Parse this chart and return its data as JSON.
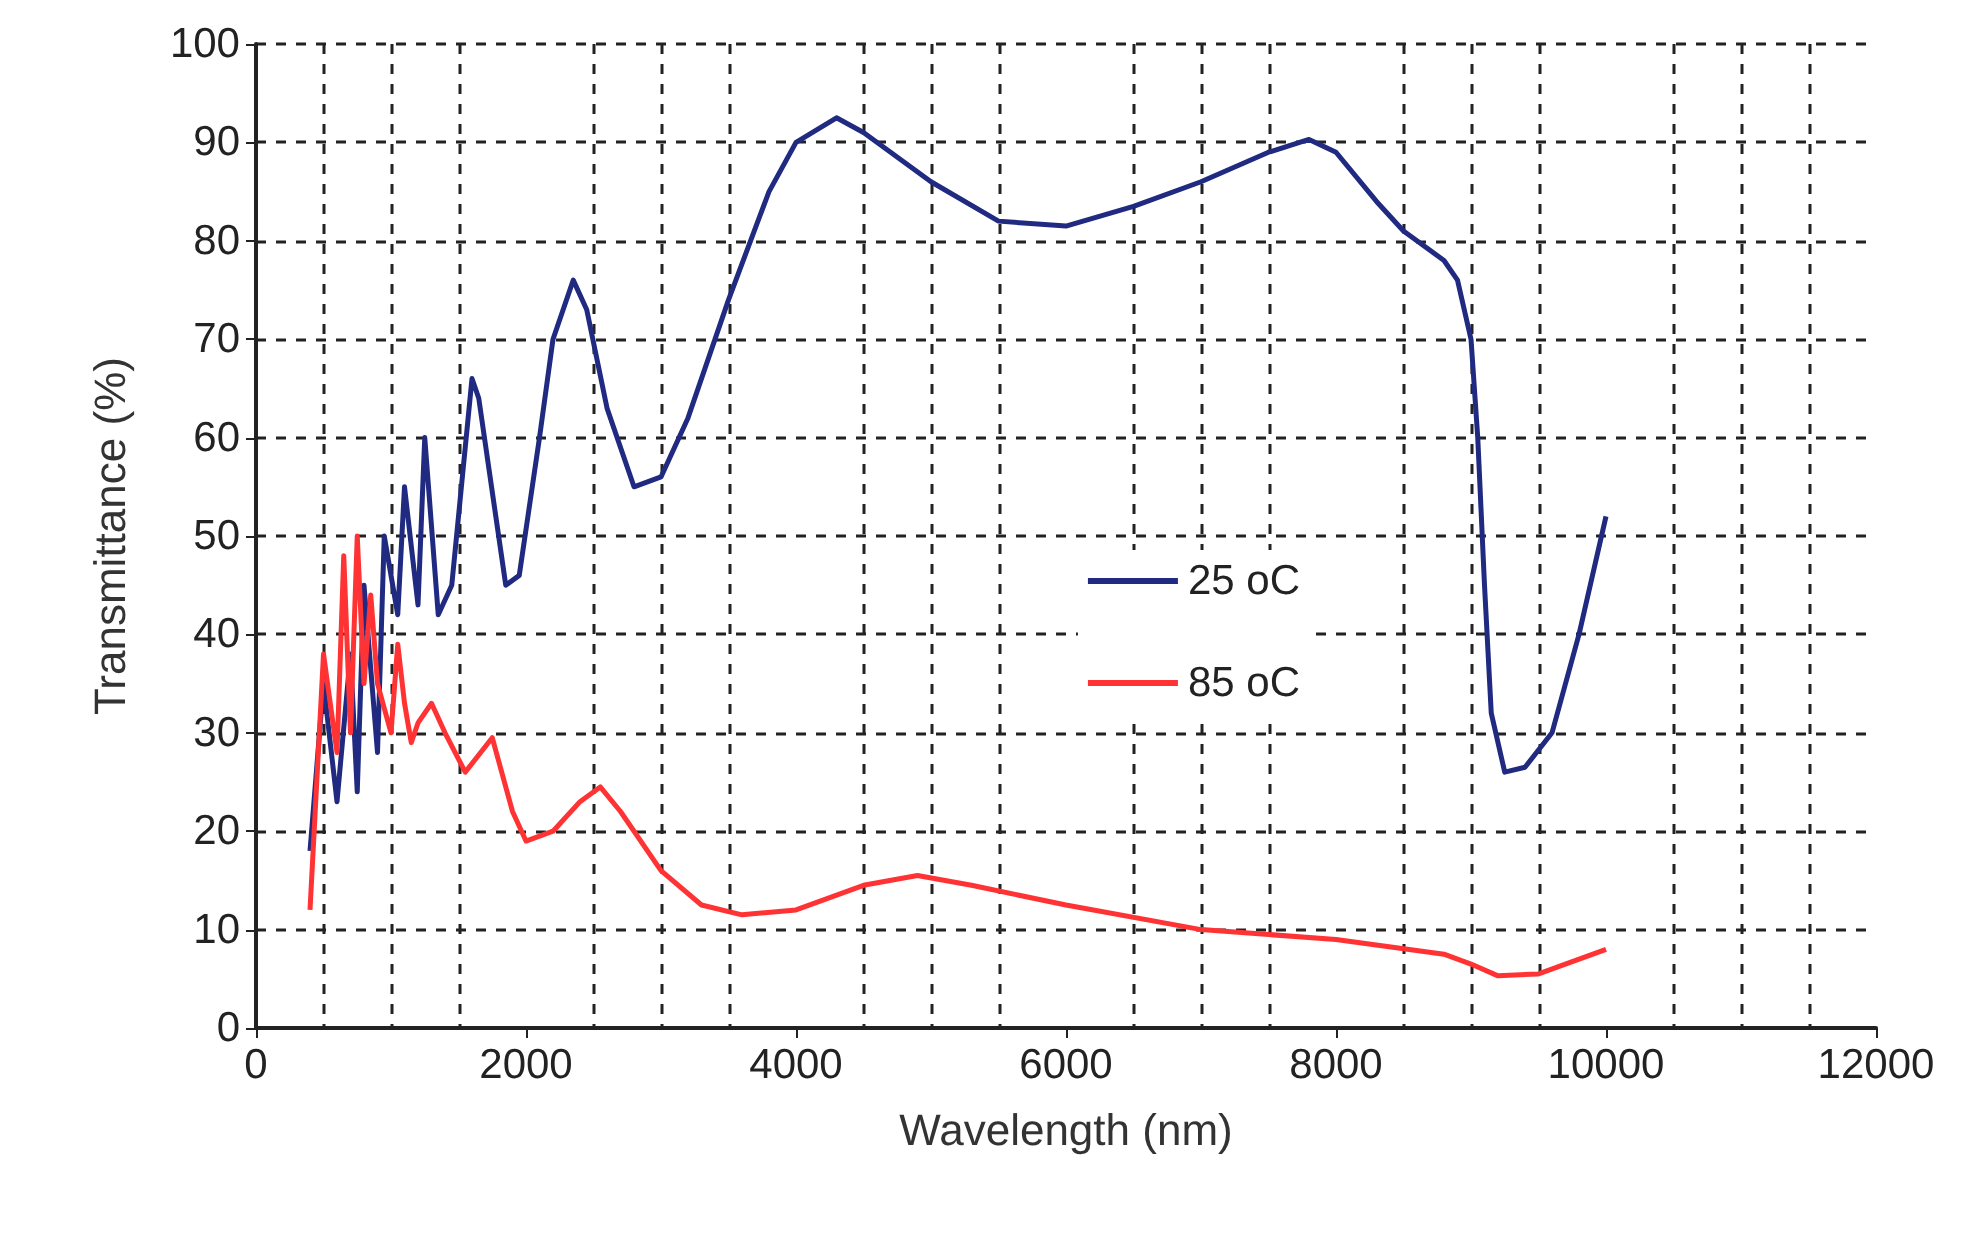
{
  "chart_data": {
    "type": "line",
    "xlabel": "Wavelength (nm)",
    "ylabel": "Transmittance (%)",
    "xlim": [
      0,
      12000
    ],
    "xticks": [
      0,
      2000,
      4000,
      6000,
      8000,
      10000,
      12000
    ],
    "ylim": [
      0,
      100
    ],
    "yticks": [
      0,
      10,
      20,
      30,
      40,
      50,
      60,
      70,
      80,
      90,
      100
    ],
    "grid": true,
    "legend": "right",
    "marker": "none",
    "line_style": "solid",
    "series": [
      {
        "name": "25 oC",
        "color": "#1f2a80",
        "x": [
          400,
          500,
          600,
          700,
          750,
          800,
          900,
          950,
          1050,
          1100,
          1200,
          1250,
          1350,
          1450,
          1600,
          1650,
          1850,
          1950,
          2100,
          2200,
          2350,
          2450,
          2600,
          2800,
          3000,
          3200,
          3500,
          3800,
          4000,
          4300,
          4500,
          5000,
          5500,
          6000,
          6500,
          7000,
          7500,
          7800,
          8000,
          8300,
          8500,
          8800,
          8900,
          9000,
          9050,
          9100,
          9150,
          9250,
          9400,
          9600,
          9800,
          10000
        ],
        "values": [
          18,
          35,
          23,
          38,
          24,
          45,
          28,
          50,
          42,
          55,
          43,
          60,
          42,
          45,
          66,
          64,
          45,
          46,
          60,
          70,
          76,
          73,
          63,
          55,
          56,
          62,
          74,
          85,
          90,
          92.5,
          91,
          86,
          82,
          81.5,
          83.5,
          86,
          89,
          90.3,
          89,
          84,
          81,
          78,
          76,
          70,
          60,
          45,
          32,
          26,
          26.5,
          30,
          40,
          52
        ]
      },
      {
        "name": "85 oC",
        "color": "#ff3333",
        "x": [
          400,
          450,
          500,
          600,
          650,
          700,
          750,
          800,
          850,
          900,
          1000,
          1050,
          1100,
          1150,
          1200,
          1300,
          1400,
          1550,
          1750,
          1900,
          2000,
          2200,
          2400,
          2550,
          2700,
          3000,
          3300,
          3600,
          4000,
          4500,
          4900,
          5300,
          6000,
          7000,
          8000,
          8800,
          9000,
          9200,
          9500,
          10000
        ],
        "values": [
          12,
          25,
          38,
          28,
          48,
          30,
          50,
          35,
          44,
          35,
          30,
          39,
          33,
          29,
          31,
          33,
          30,
          26,
          29.5,
          22,
          19,
          20,
          23,
          24.5,
          22,
          16,
          12.5,
          11.5,
          12,
          14.5,
          15.5,
          14.5,
          12.5,
          10,
          9,
          7.5,
          6.5,
          5.3,
          5.5,
          8
        ]
      }
    ]
  }
}
